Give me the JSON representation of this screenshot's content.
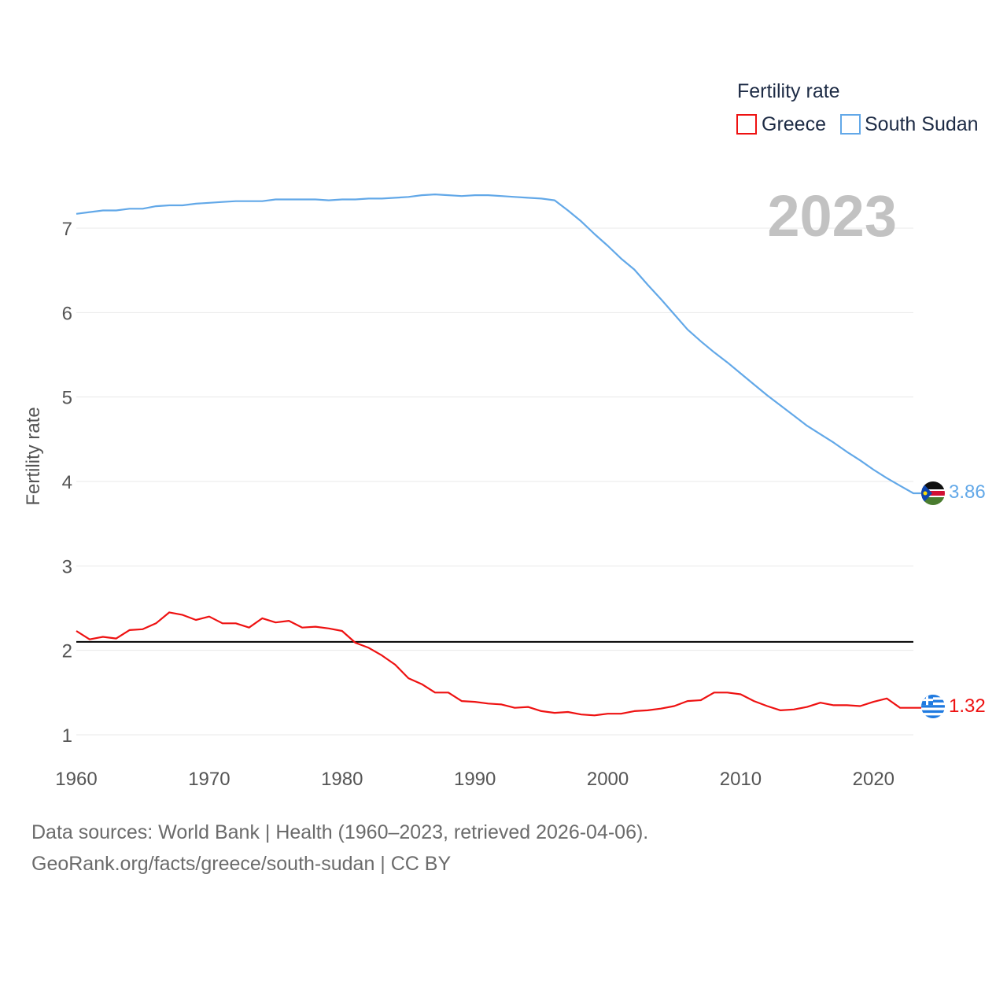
{
  "chart_data": {
    "type": "line",
    "title": "",
    "xlabel": "",
    "ylabel": "Fertility rate",
    "xlim": [
      1960,
      2023
    ],
    "ylim": [
      0.55,
      7.8
    ],
    "x_ticks": [
      1960,
      1970,
      1980,
      1990,
      2000,
      2010,
      2020
    ],
    "y_ticks": [
      1,
      2,
      3,
      4,
      5,
      6,
      7
    ],
    "legend_title": "Fertility rate",
    "legend_position": "top-right",
    "current_year_label": "2023",
    "reference_line": {
      "y": 2.1,
      "color": "#000000"
    },
    "x": [
      1960,
      1961,
      1962,
      1963,
      1964,
      1965,
      1966,
      1967,
      1968,
      1969,
      1970,
      1971,
      1972,
      1973,
      1974,
      1975,
      1976,
      1977,
      1978,
      1979,
      1980,
      1981,
      1982,
      1983,
      1984,
      1985,
      1986,
      1987,
      1988,
      1989,
      1990,
      1991,
      1992,
      1993,
      1994,
      1995,
      1996,
      1997,
      1998,
      1999,
      2000,
      2001,
      2002,
      2003,
      2004,
      2005,
      2006,
      2007,
      2008,
      2009,
      2010,
      2011,
      2012,
      2013,
      2014,
      2015,
      2016,
      2017,
      2018,
      2019,
      2020,
      2021,
      2022,
      2023
    ],
    "series": [
      {
        "name": "Greece",
        "color": "#ee1111",
        "end_label": "1.32",
        "flag": "greece-flag",
        "values": [
          2.23,
          2.13,
          2.16,
          2.14,
          2.24,
          2.25,
          2.32,
          2.45,
          2.42,
          2.36,
          2.4,
          2.32,
          2.32,
          2.27,
          2.38,
          2.33,
          2.35,
          2.27,
          2.28,
          2.26,
          2.23,
          2.09,
          2.03,
          1.94,
          1.83,
          1.67,
          1.6,
          1.5,
          1.5,
          1.4,
          1.39,
          1.37,
          1.36,
          1.32,
          1.33,
          1.28,
          1.26,
          1.27,
          1.24,
          1.23,
          1.25,
          1.25,
          1.28,
          1.29,
          1.31,
          1.34,
          1.4,
          1.41,
          1.5,
          1.5,
          1.48,
          1.4,
          1.34,
          1.29,
          1.3,
          1.33,
          1.38,
          1.35,
          1.35,
          1.34,
          1.39,
          1.43,
          1.32,
          1.32
        ]
      },
      {
        "name": "South Sudan",
        "color": "#62a8e8",
        "end_label": "3.86",
        "flag": "south-sudan-flag",
        "values": [
          7.17,
          7.19,
          7.21,
          7.21,
          7.23,
          7.23,
          7.26,
          7.27,
          7.27,
          7.29,
          7.3,
          7.31,
          7.32,
          7.32,
          7.32,
          7.34,
          7.34,
          7.34,
          7.34,
          7.33,
          7.34,
          7.34,
          7.35,
          7.35,
          7.36,
          7.37,
          7.39,
          7.4,
          7.39,
          7.38,
          7.39,
          7.39,
          7.38,
          7.37,
          7.36,
          7.35,
          7.33,
          7.21,
          7.08,
          6.93,
          6.79,
          6.64,
          6.51,
          6.33,
          6.16,
          5.98,
          5.8,
          5.66,
          5.53,
          5.41,
          5.28,
          5.15,
          5.02,
          4.9,
          4.78,
          4.66,
          4.56,
          4.46,
          4.35,
          4.25,
          4.14,
          4.04,
          3.95,
          3.86
        ]
      }
    ]
  },
  "footer": {
    "line1": "Data sources: World Bank | Health (1960–2023, retrieved 2026-04-06).",
    "line2": "GeoRank.org/facts/greece/south-sudan | CC BY"
  }
}
